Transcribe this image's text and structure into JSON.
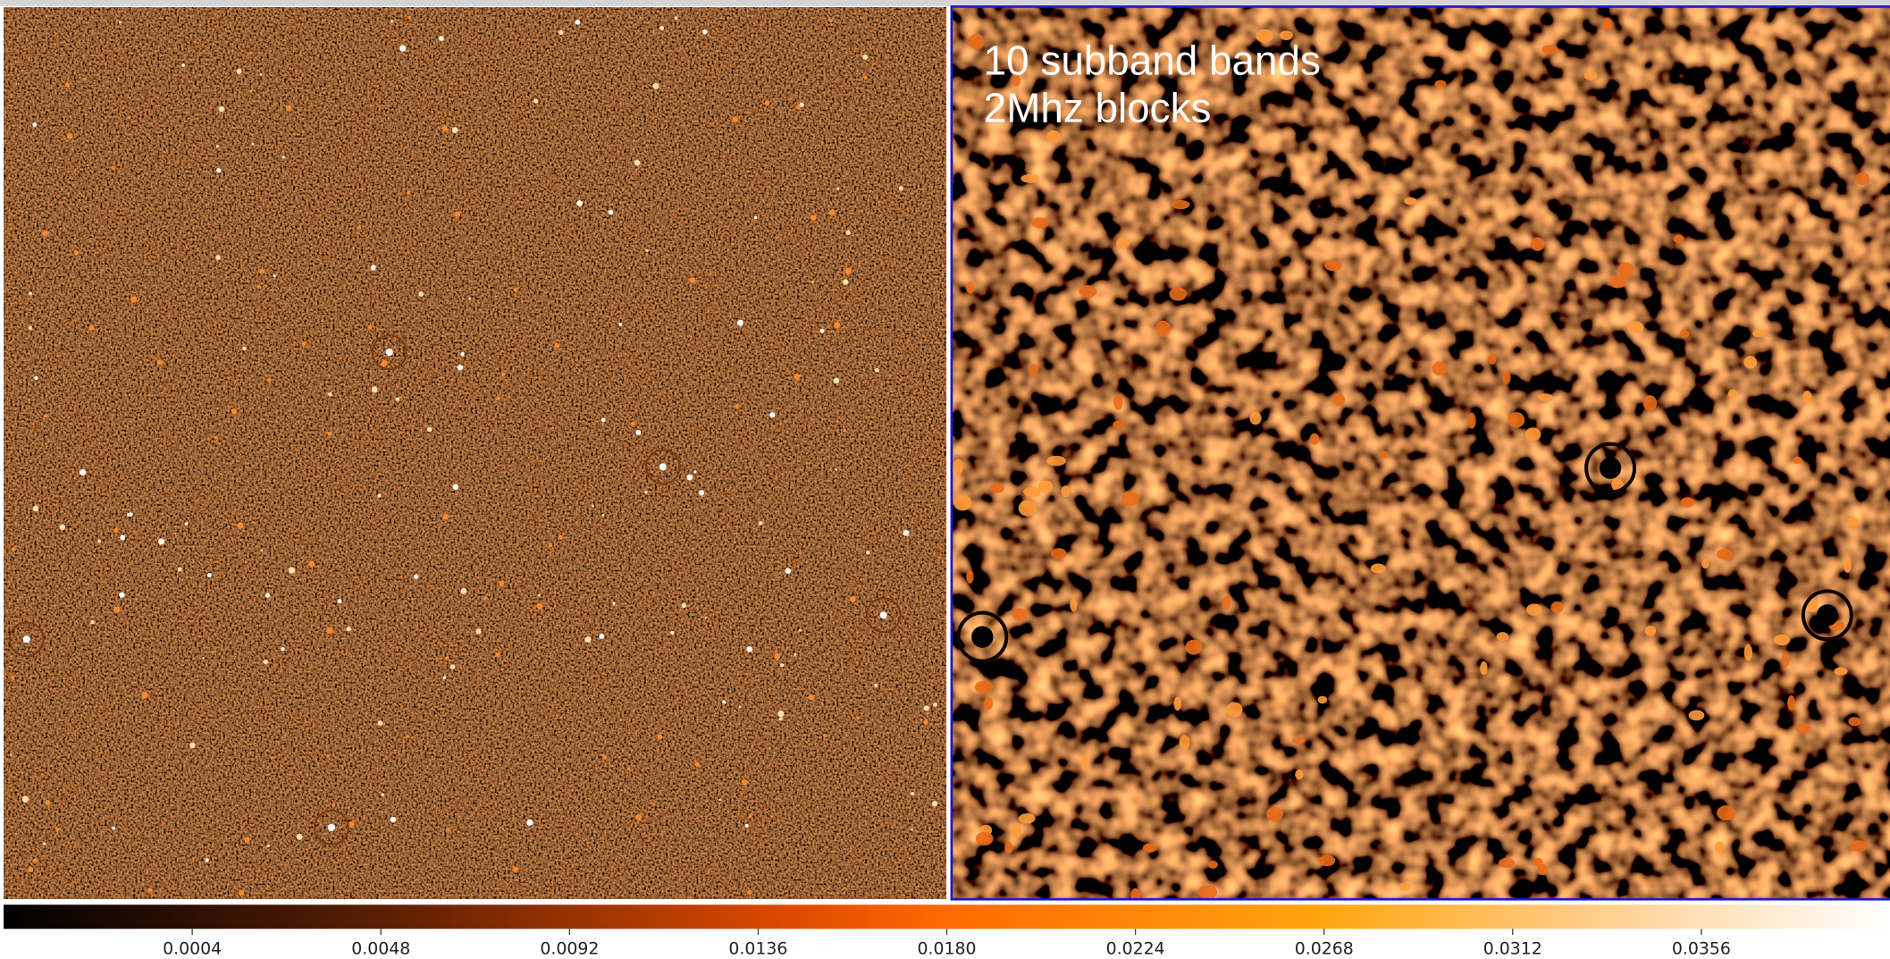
{
  "annotation": {
    "lines": [
      "10 subband bands",
      "2Mhz blocks"
    ]
  },
  "colorbar": {
    "range": [
      -0.004,
      0.04
    ],
    "ticks": [
      {
        "value": 0.0004,
        "label": "0.0004"
      },
      {
        "value": 0.0048,
        "label": "0.0048"
      },
      {
        "value": 0.0092,
        "label": "0.0092"
      },
      {
        "value": 0.0136,
        "label": "0.0136"
      },
      {
        "value": 0.018,
        "label": "0.0180"
      },
      {
        "value": 0.0224,
        "label": "0.0224"
      },
      {
        "value": 0.0268,
        "label": "0.0268"
      },
      {
        "value": 0.0312,
        "label": "0.0312"
      },
      {
        "value": 0.0356,
        "label": "0.0356"
      }
    ]
  }
}
